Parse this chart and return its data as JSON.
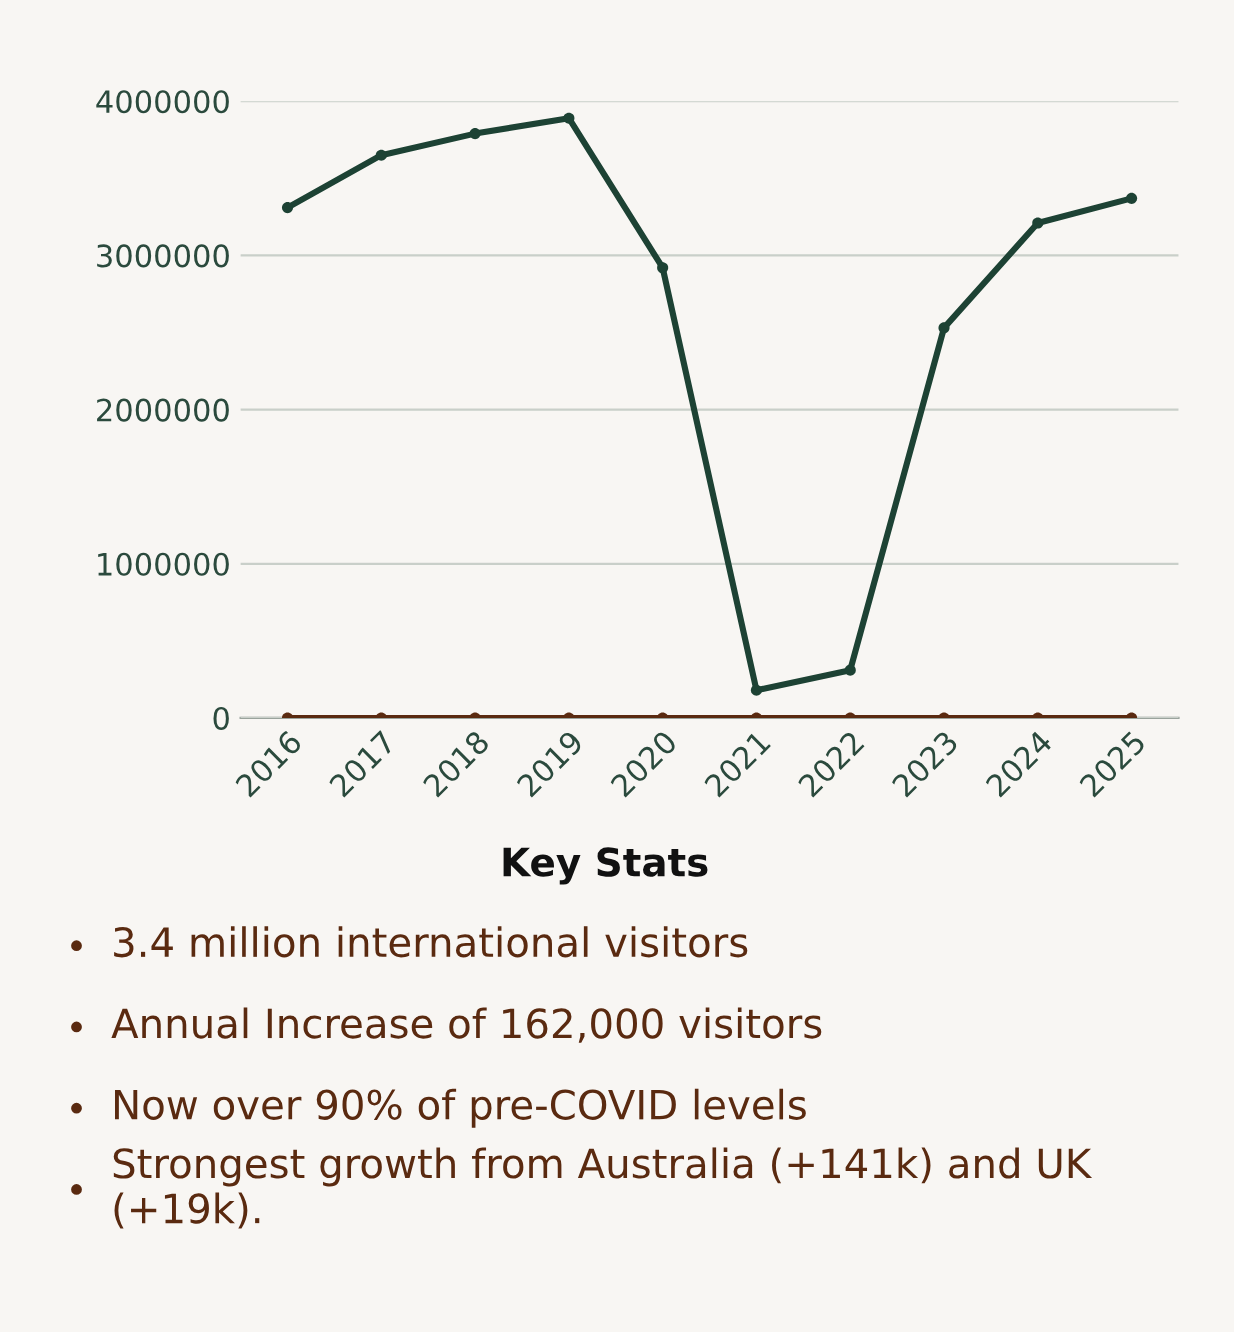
{
  "chart_data": {
    "type": "line",
    "categories": [
      "2016",
      "2017",
      "2018",
      "2019",
      "2020",
      "2021",
      "2022",
      "2023",
      "2024",
      "2025"
    ],
    "series": [
      {
        "color": "#1d4234",
        "values": [
          3310000,
          3650000,
          3790000,
          3890000,
          2920000,
          180000,
          310000,
          2530000,
          3210000,
          3370000
        ]
      },
      {
        "color": "#5a2a10",
        "values": [
          0,
          0,
          0,
          0,
          0,
          0,
          0,
          0,
          0,
          0
        ]
      }
    ],
    "ylim": [
      0,
      4000000
    ],
    "yticks": [
      0,
      1000000,
      2000000,
      3000000,
      4000000
    ],
    "grid": "y",
    "marker": "circle",
    "line_style": "solid",
    "legend": false,
    "annotations": [
      "Key Stats",
      "3.4 million international visitors",
      "Annual Increase of 162,000 visitors",
      "Now over 90% of pre-COVID levels",
      "Strongest growth from Australia (+141k) and UK (+19k)."
    ]
  }
}
